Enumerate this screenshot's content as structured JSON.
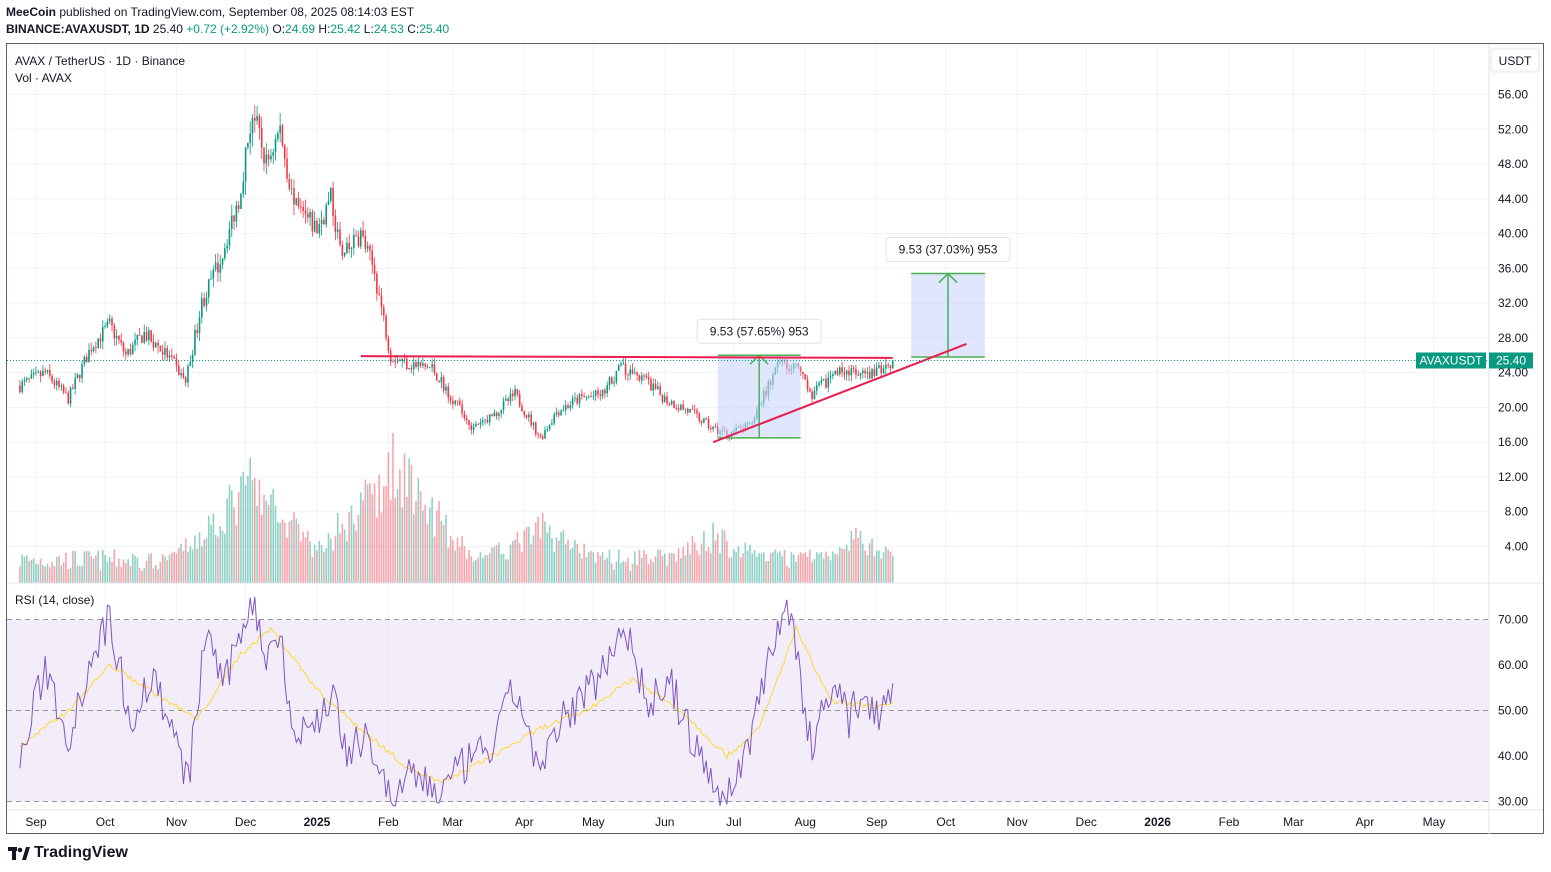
{
  "header": {
    "publisher": "MeeCoin",
    "published_text": " published on TradingView.com, September 08, 2025 08:14:03 EST",
    "symbol": "BINANCE:AVAXUSDT, 1D",
    "last": "25.40",
    "change": "+0.72 (+2.92%)",
    "open_label": "O:",
    "open": "24.69",
    "high_label": "H:",
    "high": "25.42",
    "low_label": "L:",
    "low": "24.53",
    "close_label": "C:",
    "close": "25.40"
  },
  "legend": {
    "title": "AVAX / TetherUS · 1D · Binance",
    "volume": "Vol · AVAX",
    "rsi": "RSI (14, close)"
  },
  "currency_button": "USDT",
  "price_tag": {
    "symbol": "AVAXUSDT",
    "value": "25.40"
  },
  "measure_labels": [
    "9.53 (57.65%) 953",
    "9.53 (37.03%) 953"
  ],
  "footer": {
    "brand": "TradingView"
  },
  "colors": {
    "up": "#089981",
    "down": "#f23645",
    "trend": "#e91e4f",
    "measure_fill": "#c9d5fb",
    "measure_line": "#4caf50",
    "rsi": "#7e57c2",
    "rsi_ma": "#fdd835",
    "rsi_band": "#ede7f6"
  },
  "chart_data": {
    "type": "candlestick",
    "x_ticks": [
      "Sep",
      "Oct",
      "Nov",
      "Dec",
      "2025",
      "Feb",
      "Mar",
      "Apr",
      "May",
      "Jun",
      "Jul",
      "Aug",
      "Sep",
      "Oct",
      "Nov",
      "Dec",
      "2026",
      "Feb",
      "Mar",
      "Apr",
      "May"
    ],
    "y_ticks": [
      "56.00",
      "52.00",
      "48.00",
      "44.00",
      "40.00",
      "36.00",
      "32.00",
      "28.00",
      "24.00",
      "20.00",
      "16.00",
      "12.00",
      "8.00",
      "4.00"
    ],
    "ylim": [
      0,
      57.5
    ],
    "price_path": [
      [
        "2024-08-25",
        22.5
      ],
      [
        "2024-09-05",
        24.0
      ],
      [
        "2024-09-15",
        21.0
      ],
      [
        "2024-09-25",
        27.0
      ],
      [
        "2024-10-03",
        29.5
      ],
      [
        "2024-10-10",
        26.0
      ],
      [
        "2024-10-18",
        28.5
      ],
      [
        "2024-10-28",
        26.0
      ],
      [
        "2024-11-05",
        23.0
      ],
      [
        "2024-11-12",
        32.0
      ],
      [
        "2024-11-20",
        37.0
      ],
      [
        "2024-11-28",
        44.0
      ],
      [
        "2024-12-04",
        54.0
      ],
      [
        "2024-12-10",
        48.0
      ],
      [
        "2024-12-16",
        52.0
      ],
      [
        "2024-12-22",
        43.0
      ],
      [
        "2025-01-01",
        40.5
      ],
      [
        "2025-01-07",
        44.0
      ],
      [
        "2025-01-12",
        37.0
      ],
      [
        "2025-01-20",
        40.0
      ],
      [
        "2025-01-26",
        35.5
      ],
      [
        "2025-02-02",
        26.0
      ],
      [
        "2025-02-10",
        25.0
      ],
      [
        "2025-02-20",
        24.5
      ],
      [
        "2025-03-01",
        21.0
      ],
      [
        "2025-03-10",
        17.5
      ],
      [
        "2025-03-20",
        19.5
      ],
      [
        "2025-03-28",
        21.5
      ],
      [
        "2025-04-08",
        16.5
      ],
      [
        "2025-04-15",
        19.5
      ],
      [
        "2025-04-25",
        21.0
      ],
      [
        "2025-05-05",
        21.5
      ],
      [
        "2025-05-12",
        24.5
      ],
      [
        "2025-05-22",
        23.5
      ],
      [
        "2025-06-01",
        21.0
      ],
      [
        "2025-06-12",
        19.5
      ],
      [
        "2025-06-22",
        17.5
      ],
      [
        "2025-06-28",
        17.0
      ],
      [
        "2025-07-08",
        17.8
      ],
      [
        "2025-07-16",
        22.5
      ],
      [
        "2025-07-22",
        25.5
      ],
      [
        "2025-07-28",
        24.5
      ],
      [
        "2025-08-04",
        21.5
      ],
      [
        "2025-08-12",
        23.5
      ],
      [
        "2025-08-18",
        24.5
      ],
      [
        "2025-08-24",
        23.5
      ],
      [
        "2025-08-30",
        23.8
      ],
      [
        "2025-09-08",
        25.4
      ]
    ],
    "volume": {
      "label": "Vol · AVAX",
      "peaks": [
        [
          "2024-12-03",
          12.5
        ],
        [
          "2025-02-03",
          15.0
        ],
        [
          "2025-04-09",
          7.0
        ],
        [
          "2025-06-22",
          6.0
        ],
        [
          "2025-08-23",
          5.5
        ]
      ]
    },
    "rsi": {
      "label": "RSI (14, close)",
      "ylim": [
        28,
        75
      ],
      "bands": [
        30,
        50,
        70
      ],
      "y_ticks": [
        "70.00",
        "60.00",
        "50.00",
        "40.00",
        "30.00"
      ],
      "values": [
        [
          "2024-08-25",
          38
        ],
        [
          "2024-09-05",
          60
        ],
        [
          "2024-09-15",
          44
        ],
        [
          "2024-09-25",
          62
        ],
        [
          "2024-10-03",
          70
        ],
        [
          "2024-10-12",
          48
        ],
        [
          "2024-10-22",
          58
        ],
        [
          "2024-11-01",
          42
        ],
        [
          "2024-11-06",
          34
        ],
        [
          "2024-11-14",
          68
        ],
        [
          "2024-11-22",
          55
        ],
        [
          "2024-11-30",
          70
        ],
        [
          "2024-12-04",
          74
        ],
        [
          "2024-12-10",
          62
        ],
        [
          "2024-12-16",
          68
        ],
        [
          "2024-12-22",
          44
        ],
        [
          "2025-01-02",
          48
        ],
        [
          "2025-01-08",
          55
        ],
        [
          "2025-01-14",
          38
        ],
        [
          "2025-01-22",
          46
        ],
        [
          "2025-02-02",
          30
        ],
        [
          "2025-02-12",
          36
        ],
        [
          "2025-02-24",
          32
        ],
        [
          "2025-03-06",
          38
        ],
        [
          "2025-03-18",
          42
        ],
        [
          "2025-03-28",
          55
        ],
        [
          "2025-04-08",
          36
        ],
        [
          "2025-04-18",
          48
        ],
        [
          "2025-05-04",
          58
        ],
        [
          "2025-05-14",
          70
        ],
        [
          "2025-05-24",
          52
        ],
        [
          "2025-06-04",
          55
        ],
        [
          "2025-06-14",
          42
        ],
        [
          "2025-06-22",
          34
        ],
        [
          "2025-06-28",
          30
        ],
        [
          "2025-07-08",
          44
        ],
        [
          "2025-07-16",
          62
        ],
        [
          "2025-07-24",
          74
        ],
        [
          "2025-08-04",
          42
        ],
        [
          "2025-08-12",
          56
        ],
        [
          "2025-08-20",
          48
        ],
        [
          "2025-08-26",
          54
        ],
        [
          "2025-09-02",
          50
        ],
        [
          "2025-09-08",
          56
        ]
      ],
      "ma_values": [
        [
          "2024-08-25",
          42
        ],
        [
          "2024-09-15",
          50
        ],
        [
          "2024-10-03",
          60
        ],
        [
          "2024-10-22",
          54
        ],
        [
          "2024-11-10",
          48
        ],
        [
          "2024-11-28",
          62
        ],
        [
          "2024-12-12",
          68
        ],
        [
          "2025-01-02",
          54
        ],
        [
          "2025-01-20",
          46
        ],
        [
          "2025-02-08",
          38
        ],
        [
          "2025-02-24",
          34
        ],
        [
          "2025-03-18",
          40
        ],
        [
          "2025-04-08",
          46
        ],
        [
          "2025-04-28",
          50
        ],
        [
          "2025-05-18",
          57
        ],
        [
          "2025-06-08",
          50
        ],
        [
          "2025-06-28",
          40
        ],
        [
          "2025-07-12",
          46
        ],
        [
          "2025-07-28",
          68
        ],
        [
          "2025-08-12",
          52
        ],
        [
          "2025-08-28",
          51
        ],
        [
          "2025-09-08",
          51
        ]
      ]
    },
    "drawings": {
      "resistance": {
        "from": [
          "2025-01-20",
          25.9
        ],
        "to": [
          "2025-09-08",
          25.7
        ]
      },
      "support_trend": {
        "from": [
          "2025-06-22",
          16.0
        ],
        "to": [
          "2025-10-10",
          27.3
        ]
      },
      "measure_1": {
        "from": [
          "2025-06-24",
          16.5
        ],
        "to": [
          "2025-07-30",
          26.0
        ],
        "label": "9.53 (57.65%) 953"
      },
      "measure_2": {
        "from": [
          "2025-09-16",
          25.8
        ],
        "to": [
          "2025-10-18",
          35.4
        ],
        "label": "9.53 (37.03%) 953"
      }
    }
  }
}
